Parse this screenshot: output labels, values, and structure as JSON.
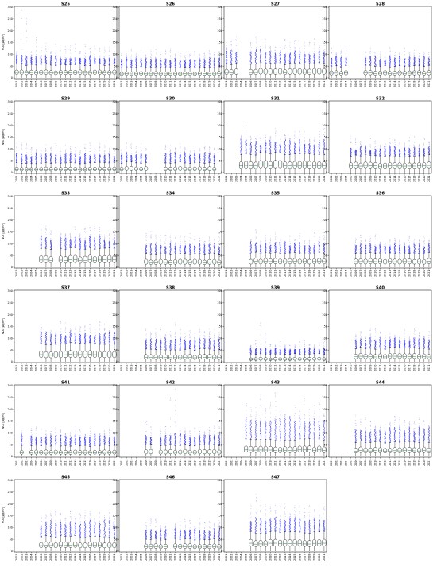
{
  "chart_data": {
    "type": "boxplot-grid",
    "ylabel": "NO₂ [µg/m³]",
    "ylim": [
      0,
      300
    ],
    "yticks": [
      0,
      50,
      100,
      150,
      200,
      250,
      300
    ],
    "years": [
      "2001",
      "2002",
      "2003",
      "2004",
      "2005",
      "2006",
      "2007",
      "2008",
      "2009",
      "2010",
      "2011",
      "2012",
      "2013",
      "2014",
      "2015",
      "2016",
      "2017",
      "2018",
      "2019",
      "2020",
      "2021"
    ],
    "colors": {
      "outlier_dense": "#3c3cf0",
      "outlier_sparse": "#b0b0e8",
      "box": "#000000",
      "median": "#2e8b57"
    },
    "panels": [
      {
        "title": "S25",
        "grid": [
          0,
          0
        ],
        "first": 0,
        "last": 20,
        "missing": [],
        "median": 22,
        "q1": 14,
        "q3": 32,
        "whisker": 55,
        "dense": 90,
        "max": 130,
        "peaks": {
          "1": 290,
          "2": 250,
          "4": 170
        }
      },
      {
        "title": "S26",
        "grid": [
          0,
          1
        ],
        "first": 0,
        "last": 20,
        "missing": [],
        "median": 18,
        "q1": 11,
        "q3": 26,
        "whisker": 45,
        "dense": 80,
        "max": 110,
        "peaks": {}
      },
      {
        "title": "S27",
        "grid": [
          0,
          2
        ],
        "first": 0,
        "last": 20,
        "missing": [
          3,
          4
        ],
        "median": 24,
        "q1": 15,
        "q3": 38,
        "whisker": 60,
        "dense": 110,
        "max": 150,
        "peaks": {
          "2": 175,
          "6": 190
        }
      },
      {
        "title": "S28",
        "grid": [
          0,
          3
        ],
        "first": 0,
        "last": 20,
        "missing": [
          4,
          5,
          6
        ],
        "median": 20,
        "q1": 12,
        "q3": 30,
        "whisker": 50,
        "dense": 85,
        "max": 120,
        "peaks": {}
      },
      {
        "title": "S29",
        "grid": [
          1,
          0
        ],
        "first": 0,
        "last": 20,
        "missing": [],
        "median": 12,
        "q1": 7,
        "q3": 22,
        "whisker": 40,
        "dense": 75,
        "max": 110,
        "peaks": {
          "1": 125
        }
      },
      {
        "title": "S30",
        "grid": [
          1,
          1
        ],
        "first": 0,
        "last": 19,
        "missing": [
          6,
          7,
          8
        ],
        "median": 14,
        "q1": 8,
        "q3": 24,
        "whisker": 42,
        "dense": 80,
        "max": 110,
        "peaks": {}
      },
      {
        "title": "S31",
        "grid": [
          1,
          2
        ],
        "first": 3,
        "last": 20,
        "missing": [],
        "median": 30,
        "q1": 18,
        "q3": 48,
        "whisker": 80,
        "dense": 130,
        "max": 165,
        "peaks": {
          "4": 200
        }
      },
      {
        "title": "S32",
        "grid": [
          1,
          3
        ],
        "first": 4,
        "last": 20,
        "missing": [],
        "median": 28,
        "q1": 18,
        "q3": 42,
        "whisker": 70,
        "dense": 105,
        "max": 135,
        "peaks": {
          "4": 155
        }
      },
      {
        "title": "S33",
        "grid": [
          2,
          0
        ],
        "first": 5,
        "last": 20,
        "missing": [
          8
        ],
        "median": 30,
        "q1": 18,
        "q3": 48,
        "whisker": 78,
        "dense": 120,
        "max": 160,
        "peaks": {
          "6": 175,
          "7": 155
        }
      },
      {
        "title": "S34",
        "grid": [
          2,
          1
        ],
        "first": 5,
        "last": 20,
        "missing": [],
        "median": 20,
        "q1": 12,
        "q3": 32,
        "whisker": 55,
        "dense": 95,
        "max": 125,
        "peaks": {
          "6": 150
        }
      },
      {
        "title": "S35",
        "grid": [
          2,
          2
        ],
        "first": 5,
        "last": 20,
        "missing": [],
        "median": 24,
        "q1": 14,
        "q3": 36,
        "whisker": 60,
        "dense": 100,
        "max": 130,
        "peaks": {
          "6": 160
        }
      },
      {
        "title": "S36",
        "grid": [
          2,
          3
        ],
        "first": 5,
        "last": 20,
        "missing": [],
        "median": 24,
        "q1": 14,
        "q3": 36,
        "whisker": 60,
        "dense": 95,
        "max": 125,
        "peaks": {
          "6": 135
        }
      },
      {
        "title": "S37",
        "grid": [
          3,
          0
        ],
        "first": 5,
        "last": 20,
        "missing": [],
        "median": 30,
        "q1": 18,
        "q3": 46,
        "whisker": 78,
        "dense": 120,
        "max": 150,
        "peaks": {}
      },
      {
        "title": "S38",
        "grid": [
          3,
          1
        ],
        "first": 5,
        "last": 20,
        "missing": [],
        "median": 18,
        "q1": 10,
        "q3": 30,
        "whisker": 52,
        "dense": 95,
        "max": 125,
        "peaks": {
          "11": 165
        }
      },
      {
        "title": "S39",
        "grid": [
          3,
          2
        ],
        "first": 5,
        "last": 20,
        "missing": [],
        "median": 10,
        "q1": 6,
        "q3": 18,
        "whisker": 32,
        "dense": 55,
        "max": 80,
        "peaks": {
          "7": 165,
          "8": 120
        }
      },
      {
        "title": "S40",
        "grid": [
          3,
          3
        ],
        "first": 5,
        "last": 20,
        "missing": [],
        "median": 22,
        "q1": 13,
        "q3": 34,
        "whisker": 58,
        "dense": 95,
        "max": 125,
        "peaks": {
          "6": 130
        }
      },
      {
        "title": "S41",
        "grid": [
          4,
          0
        ],
        "first": 1,
        "last": 20,
        "missing": [
          2
        ],
        "median": 16,
        "q1": 9,
        "q3": 26,
        "whisker": 46,
        "dense": 85,
        "max": 110,
        "peaks": {
          "4": 125,
          "17": 100
        }
      },
      {
        "title": "S42",
        "grid": [
          4,
          1
        ],
        "first": 5,
        "last": 20,
        "missing": [
          7
        ],
        "median": 18,
        "q1": 10,
        "q3": 28,
        "whisker": 48,
        "dense": 90,
        "max": 120,
        "peaks": {
          "5": 150,
          "10": 250,
          "11": 285
        }
      },
      {
        "title": "S43",
        "grid": [
          4,
          2
        ],
        "first": 4,
        "last": 20,
        "missing": [],
        "median": 26,
        "q1": 16,
        "q3": 42,
        "whisker": 70,
        "dense": 150,
        "max": 200,
        "peaks": {
          "7": 260,
          "10": 270,
          "16": 245
        }
      },
      {
        "title": "S44",
        "grid": [
          4,
          3
        ],
        "first": 5,
        "last": 20,
        "missing": [],
        "median": 24,
        "q1": 15,
        "q3": 38,
        "whisker": 62,
        "dense": 115,
        "max": 150,
        "peaks": {
          "5": 175
        }
      },
      {
        "title": "S45",
        "grid": [
          5,
          0
        ],
        "first": 5,
        "last": 20,
        "missing": [],
        "median": 24,
        "q1": 15,
        "q3": 38,
        "whisker": 62,
        "dense": 120,
        "max": 155,
        "peaks": {
          "7": 170,
          "8": 175
        }
      },
      {
        "title": "S46",
        "grid": [
          5,
          1
        ],
        "first": 5,
        "last": 20,
        "missing": [
          10
        ],
        "median": 18,
        "q1": 11,
        "q3": 30,
        "whisker": 50,
        "dense": 90,
        "max": 120,
        "peaks": {
          "7": 135
        }
      },
      {
        "title": "S47",
        "grid": [
          5,
          2
        ],
        "first": 5,
        "last": 20,
        "missing": [],
        "median": 32,
        "q1": 20,
        "q3": 48,
        "whisker": 80,
        "dense": 140,
        "max": 180,
        "peaks": {
          "6": 240,
          "7": 205
        }
      }
    ]
  }
}
